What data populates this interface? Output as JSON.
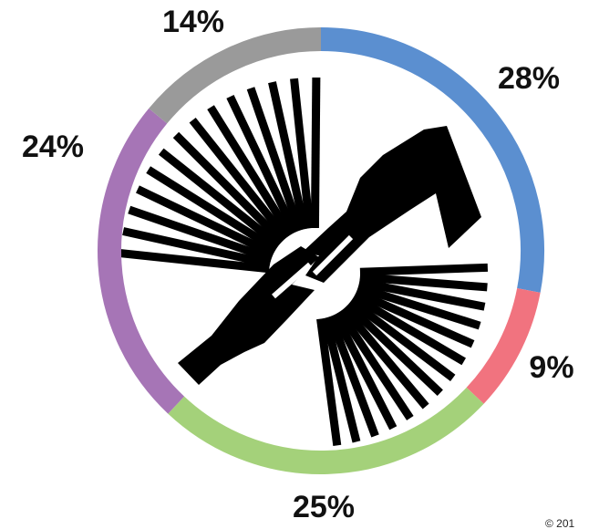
{
  "chart_data": {
    "type": "donut",
    "categories": [
      null,
      null,
      null,
      null,
      null
    ],
    "values": [
      28,
      9,
      25,
      24,
      14
    ],
    "value_labels": [
      "28%",
      "9%",
      "25%",
      "24%",
      "14%"
    ],
    "colors": [
      "#5b8fd0",
      "#f1737f",
      "#a4d17a",
      "#a675b6",
      "#9a9a9a"
    ],
    "copyright": "© 201"
  }
}
